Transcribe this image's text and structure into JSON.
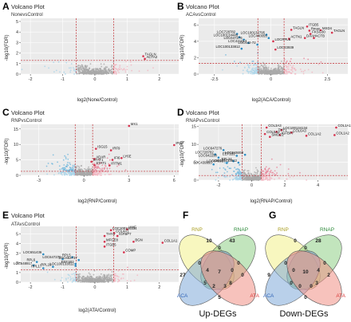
{
  "chart_data": [
    {
      "panel": "A",
      "type": "scatter",
      "title": "Volcano Plot",
      "subtitle": "NonevsControl",
      "xlabel": "log2(None/Control)",
      "ylabel": "-log10(FDR)",
      "xlim": [
        -2.3,
        2.6
      ],
      "ylim": [
        0,
        5.3
      ],
      "xticks": [
        -2,
        -1,
        0,
        1,
        2
      ],
      "yticks": [
        0,
        1,
        2,
        3,
        4,
        5
      ],
      "vlines": [
        -0.58,
        0.58
      ],
      "hline": 1.3,
      "points": [
        {
          "label": "TAGLN",
          "x": 1.5,
          "y": 1.7
        },
        {
          "label": "ACTA2",
          "x": 1.55,
          "y": 1.45
        }
      ]
    },
    {
      "panel": "B",
      "type": "scatter",
      "title": "Volcano Plot",
      "subtitle": "ACAvsControl",
      "xlabel": "log2(ACA/Control)",
      "ylabel": "-log10(FDR)",
      "xlim": [
        -3.2,
        3.4
      ],
      "ylim": [
        0,
        6.8
      ],
      "xticks": [
        -2.5,
        0.0,
        2.5
      ],
      "yticks": [
        0,
        2,
        4,
        6
      ],
      "vlines": [
        -0.58,
        0.58
      ],
      "hline": 1.3,
      "points": [
        {
          "label": "TAGLN",
          "x": 0.9,
          "y": 5.4
        },
        {
          "label": "ITGB5",
          "x": 1.6,
          "y": 5.8
        },
        {
          "label": "Rmax",
          "x": 1.7,
          "y": 5.3
        },
        {
          "label": "MXD4",
          "x": 2.2,
          "y": 5.35
        },
        {
          "label": "FKSG30",
          "x": 1.75,
          "y": 4.9
        },
        {
          "label": "DAAH",
          "x": 1.5,
          "y": 4.4
        },
        {
          "label": "ACTB",
          "x": 1.9,
          "y": 4.4
        },
        {
          "label": "TAGLN",
          "x": 2.7,
          "y": 5.05
        },
        {
          "label": "ACTN1",
          "x": 0.8,
          "y": 4.3
        },
        {
          "label": "LOC728782",
          "x": -1.5,
          "y": 4.9
        },
        {
          "label": "LOC100132795",
          "x": -0.2,
          "y": 4.8
        },
        {
          "label": "LOC100134446",
          "x": -1.4,
          "y": 4.5
        },
        {
          "label": "LOC440055",
          "x": -0.1,
          "y": 4.4
        },
        {
          "label": "LOC647276",
          "x": -1.2,
          "y": 4.2
        },
        {
          "label": "LOCRPL5",
          "x": 0.1,
          "y": 4.0
        },
        {
          "label": "LOC441013",
          "x": -1.0,
          "y": 3.8
        },
        {
          "label": "LOC442-72",
          "x": -0.6,
          "y": 3.6
        },
        {
          "label": "LOC100133812",
          "x": -1.3,
          "y": 3.1
        },
        {
          "label": "LOC23939",
          "x": 0.2,
          "y": 3.0
        }
      ]
    },
    {
      "panel": "C",
      "type": "scatter",
      "title": "Volcano Plot",
      "subtitle": "RNPvsControl",
      "xlabel": "log2(RNP/Control)",
      "ylabel": "-log10(FDR)",
      "xlim": [
        -4.2,
        6.3
      ],
      "ylim": [
        0,
        16.5
      ],
      "xticks": [
        -3,
        0,
        3,
        6
      ],
      "yticks": [
        0,
        5,
        10,
        15
      ],
      "vlines": [
        -0.58,
        0.58
      ],
      "hline": 1.3,
      "points": [
        {
          "label": "MX1",
          "x": 3.0,
          "y": 16.0
        },
        {
          "label": "IFI27",
          "x": 6.0,
          "y": 9.8
        },
        {
          "label": "ISG15",
          "x": 0.8,
          "y": 8.6
        },
        {
          "label": "IRF9",
          "x": 1.8,
          "y": 8.1
        },
        {
          "label": "LY6E",
          "x": 2.5,
          "y": 5.6
        },
        {
          "label": "ADAR",
          "x": 0.7,
          "y": 5.3
        },
        {
          "label": "IFI6",
          "x": 1.9,
          "y": 5.0
        },
        {
          "label": "STAT1",
          "x": 0.5,
          "y": 4.4
        },
        {
          "label": "STAT1",
          "x": 0.7,
          "y": 3.3
        },
        {
          "label": "IFITM1",
          "x": 1.7,
          "y": 3.2
        }
      ]
    },
    {
      "panel": "D",
      "type": "scatter",
      "title": "Volcano Plot",
      "subtitle": "RNAPvsControl",
      "xlabel": "log2(RNAP/Control)",
      "ylabel": "-log10(FDR)",
      "xlim": [
        -3.2,
        5.8
      ],
      "ylim": [
        0,
        15.6
      ],
      "xticks": [
        -2,
        0,
        2,
        4
      ],
      "yticks": [
        0,
        5,
        10,
        15
      ],
      "vlines": [
        -0.58,
        0.58
      ],
      "hline": 1.3,
      "points": [
        {
          "label": "COL1A1",
          "x": 5.1,
          "y": 14.7
        },
        {
          "label": "COL1A2",
          "x": 5.0,
          "y": 12.6
        },
        {
          "label": "COL3A3",
          "x": 0.9,
          "y": 14.7
        },
        {
          "label": "LOC100134134",
          "x": 1.8,
          "y": 14.0
        },
        {
          "label": "THY1",
          "x": 1.5,
          "y": 13.5
        },
        {
          "label": "COL6A3",
          "x": 2.4,
          "y": 13.3
        },
        {
          "label": "COL5A2",
          "x": 0.8,
          "y": 12.9
        },
        {
          "label": "IGFBP7",
          "x": 1.7,
          "y": 12.6
        },
        {
          "label": "COL1A2",
          "x": 3.3,
          "y": 12.4
        },
        {
          "label": "SMOC2",
          "x": 1.1,
          "y": 12.1
        },
        {
          "label": "LOC647276",
          "x": -1.7,
          "y": 8.4
        },
        {
          "label": "LOC728782",
          "x": -2.2,
          "y": 7.2
        },
        {
          "label": "EEF1B2",
          "x": -0.9,
          "y": 6.8
        },
        {
          "label": "LOC642250",
          "x": -2.0,
          "y": 6.3
        },
        {
          "label": "LOC648468",
          "x": -0.4,
          "y": 7.1
        },
        {
          "label": "RPL34",
          "x": -1.1,
          "y": 5.3
        },
        {
          "label": "LOC648917",
          "x": -1.5,
          "y": 4.8
        },
        {
          "label": "LOC100133812",
          "x": -0.8,
          "y": 4.9
        },
        {
          "label": "LOC439953",
          "x": -2.3,
          "y": 4.4
        }
      ]
    },
    {
      "panel": "E",
      "type": "scatter",
      "title": "Volcano Plot",
      "subtitle": "ATAvsControl",
      "xlabel": "log2(ATA/Control)",
      "ylabel": "-log10(FDR)",
      "xlim": [
        -2.3,
        2.6
      ],
      "ylim": [
        0,
        5.8
      ],
      "xticks": [
        -2,
        -1,
        0,
        1,
        2
      ],
      "yticks": [
        0,
        1,
        2,
        3,
        4,
        5
      ],
      "vlines": [
        -0.58,
        0.58
      ],
      "hline": 1.3,
      "points": [
        {
          "label": "VWF",
          "x": 1.0,
          "y": 5.5
        },
        {
          "label": "LOC100134134",
          "x": 0.5,
          "y": 5.4
        },
        {
          "label": "COL4A1",
          "x": 0.6,
          "y": 5.1
        },
        {
          "label": "THY1",
          "x": 0.3,
          "y": 4.8
        },
        {
          "label": "IGFBP7",
          "x": 0.7,
          "y": 4.8
        },
        {
          "label": "MFGE8",
          "x": 0.3,
          "y": 4.2
        },
        {
          "label": "ITGB5",
          "x": 0.3,
          "y": 3.7
        },
        {
          "label": "BGN",
          "x": 1.2,
          "y": 4.2
        },
        {
          "label": "COL1A1",
          "x": 2.1,
          "y": 4.1
        },
        {
          "label": "COMP",
          "x": 0.9,
          "y": 3.1
        },
        {
          "label": "LOC651436",
          "x": -1.6,
          "y": 2.9
        },
        {
          "label": "RPL5",
          "x": -0.7,
          "y": 2.6
        },
        {
          "label": "LOC647276",
          "x": -1.0,
          "y": 2.4
        },
        {
          "label": "LOC653737",
          "x": -0.5,
          "y": 2.3
        },
        {
          "label": "RPL6",
          "x": -1.8,
          "y": 2.1
        },
        {
          "label": "EEF1B2",
          "x": -0.6,
          "y": 1.9
        },
        {
          "label": "LOC648917",
          "x": -1.9,
          "y": 1.75
        },
        {
          "label": "RPL10",
          "x": -1.3,
          "y": 1.6
        },
        {
          "label": "LOC100133812",
          "x": -0.6,
          "y": 1.7
        },
        {
          "label": "RPL17",
          "x": -1.6,
          "y": 1.45
        }
      ]
    }
  ],
  "panel_letters": [
    "A",
    "B",
    "C",
    "D",
    "E",
    "F",
    "G"
  ],
  "venn": [
    {
      "panel": "F",
      "caption": "Up-DEGs",
      "sets": [
        "RNP",
        "RNAP",
        "ACA",
        "ATA"
      ],
      "region_values": [
        "27",
        "10",
        "43",
        "0",
        "0",
        "0",
        "7",
        "0",
        "5",
        "8",
        "4",
        "0",
        "5",
        "2",
        "3"
      ]
    },
    {
      "panel": "G",
      "caption": "Down-DEGs",
      "sets": [
        "RNP",
        "RNAP",
        "ACA",
        "ATA"
      ],
      "region_values": [
        "9",
        "0",
        "28",
        "2",
        "0",
        "0",
        "10",
        "0",
        "0",
        "3",
        "0",
        "4",
        "0",
        "0",
        "0"
      ]
    }
  ],
  "colors": {
    "up": "#e8879b",
    "down": "#6fb6dc",
    "ns": "#a9a9a9",
    "threshold": "#c0272d",
    "panel_bg": "#ebebeb",
    "grid": "#ffffff",
    "venn_rnp": "#f3f08a",
    "venn_rnap": "#8fcf86",
    "venn_aca": "#7fa9d8",
    "venn_ata": "#f08f85",
    "set_label_rnp": "#a99d1f",
    "set_label_rnap": "#2d8a3a",
    "set_label_aca": "#3366b8",
    "set_label_ata": "#d93a3a"
  }
}
